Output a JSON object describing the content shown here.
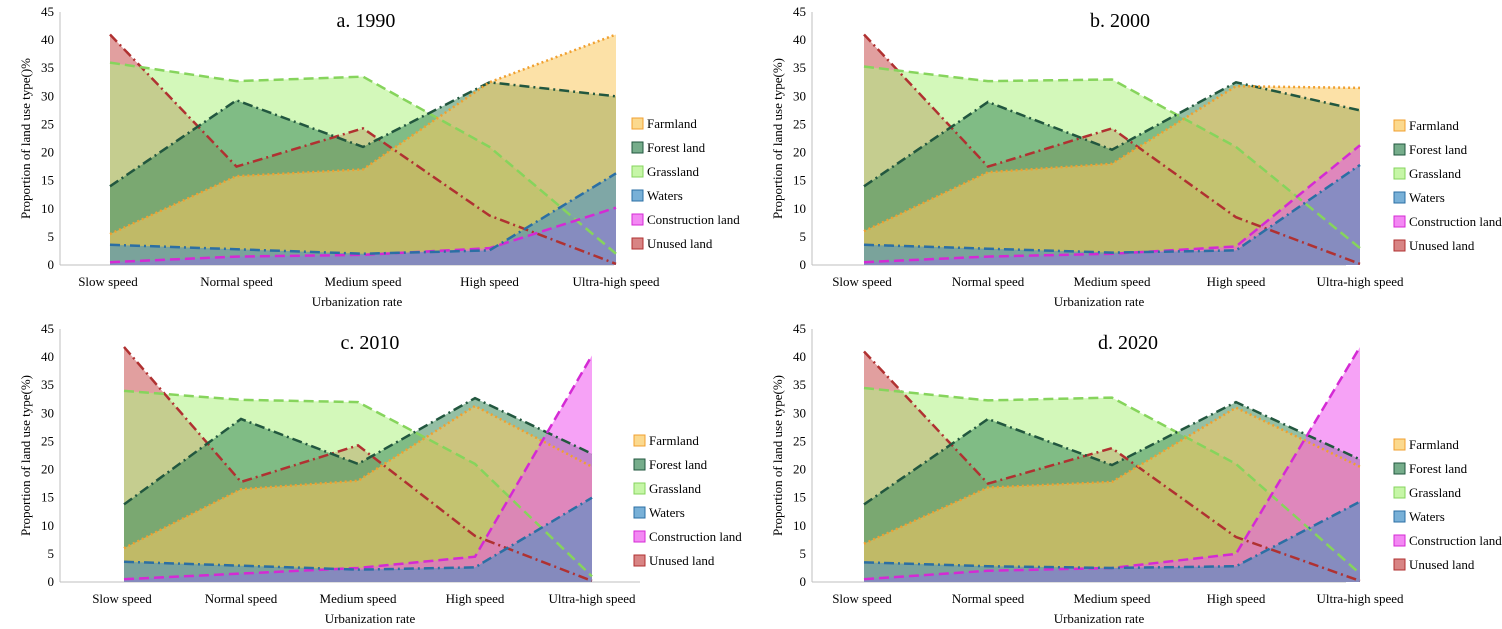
{
  "chart_data": [
    {
      "type": "area",
      "title": "a. 1990",
      "categories": [
        "Slow speed",
        "Normal speed",
        "Medium speed",
        "High speed",
        "Ultra-high speed"
      ],
      "xlabel": "Urbanization rate",
      "ylabel": "Proportion of land use type()%",
      "ylim": [
        0,
        45
      ],
      "yticks": [
        "0",
        "5",
        "10",
        "15",
        "20",
        "25",
        "30",
        "35",
        "40",
        "45"
      ],
      "legend_position": "right",
      "series": [
        {
          "name": "Farmland",
          "values": [
            5.5,
            15.8,
            17.0,
            32.5,
            41.0
          ]
        },
        {
          "name": "Forest land",
          "values": [
            14.0,
            29.3,
            21.0,
            32.5,
            30.0
          ]
        },
        {
          "name": "Grassland",
          "values": [
            36.0,
            32.7,
            33.5,
            21.0,
            2.0
          ]
        },
        {
          "name": "Waters",
          "values": [
            3.6,
            2.8,
            2.0,
            2.6,
            16.3
          ]
        },
        {
          "name": "Construction land",
          "values": [
            0.5,
            1.5,
            1.8,
            3.0,
            10.2
          ]
        },
        {
          "name": "Unused land",
          "values": [
            41.0,
            17.5,
            24.3,
            8.8,
            0.2
          ]
        }
      ]
    },
    {
      "type": "area",
      "title": "b. 2000",
      "categories": [
        "Slow speed",
        "Normal speed",
        "Medium speed",
        "High speed",
        "Ultra-high speed"
      ],
      "xlabel": "Urbanization rate",
      "ylabel": "Proportion of land use type(%)",
      "ylim": [
        0,
        45
      ],
      "yticks": [
        "0",
        "5",
        "10",
        "15",
        "20",
        "25",
        "30",
        "35",
        "40",
        "45"
      ],
      "legend_position": "right",
      "series": [
        {
          "name": "Farmland",
          "values": [
            6.0,
            16.5,
            18.0,
            31.8,
            31.5
          ]
        },
        {
          "name": "Forest land",
          "values": [
            14.0,
            29.0,
            20.5,
            32.5,
            27.5
          ]
        },
        {
          "name": "Grassland",
          "values": [
            35.3,
            32.7,
            33.0,
            21.0,
            3.0
          ]
        },
        {
          "name": "Waters",
          "values": [
            3.6,
            2.9,
            2.2,
            2.6,
            17.8
          ]
        },
        {
          "name": "Construction land",
          "values": [
            0.5,
            1.5,
            2.0,
            3.3,
            21.3
          ]
        },
        {
          "name": "Unused land",
          "values": [
            41.0,
            17.5,
            24.3,
            8.5,
            0.2
          ]
        }
      ]
    },
    {
      "type": "area",
      "title": "c. 2010",
      "categories": [
        "Slow speed",
        "Normal speed",
        "Medium speed",
        "High speed",
        "Ultra-high speed"
      ],
      "xlabel": "Urbanization rate",
      "ylabel": "Proportion of land use type(%)",
      "ylim": [
        0,
        45
      ],
      "yticks": [
        "0",
        "5",
        "10",
        "15",
        "20",
        "25",
        "30",
        "35",
        "40",
        "45"
      ],
      "legend_position": "right",
      "series": [
        {
          "name": "Farmland",
          "values": [
            6.0,
            16.5,
            18.0,
            31.3,
            20.5
          ]
        },
        {
          "name": "Forest land",
          "values": [
            13.8,
            29.0,
            21.0,
            32.7,
            22.8
          ]
        },
        {
          "name": "Grassland",
          "values": [
            34.0,
            32.4,
            32.0,
            21.0,
            1.0
          ]
        },
        {
          "name": "Waters",
          "values": [
            3.6,
            2.9,
            2.2,
            2.6,
            15.0
          ]
        },
        {
          "name": "Construction land",
          "values": [
            0.5,
            1.5,
            2.5,
            4.5,
            40.3
          ]
        },
        {
          "name": "Unused land",
          "values": [
            41.8,
            17.8,
            24.3,
            8.2,
            0.2
          ]
        }
      ]
    },
    {
      "type": "area",
      "title": "d. 2020",
      "categories": [
        "Slow speed",
        "Normal speed",
        "Medium speed",
        "High speed",
        "Ultra-high speed"
      ],
      "xlabel": "Urbanization rate",
      "ylabel": "Proportion of land use type(%)",
      "ylim": [
        0,
        45
      ],
      "yticks": [
        "0",
        "5",
        "10",
        "15",
        "20",
        "25",
        "30",
        "35",
        "40",
        "45"
      ],
      "legend_position": "right",
      "series": [
        {
          "name": "Farmland",
          "values": [
            6.8,
            16.8,
            17.8,
            31.0,
            20.5
          ]
        },
        {
          "name": "Forest land",
          "values": [
            13.8,
            29.0,
            20.8,
            32.0,
            21.8
          ]
        },
        {
          "name": "Grassland",
          "values": [
            34.5,
            32.3,
            32.8,
            21.0,
            1.5
          ]
        },
        {
          "name": "Waters",
          "values": [
            3.5,
            2.8,
            2.5,
            2.8,
            14.3
          ]
        },
        {
          "name": "Construction land",
          "values": [
            0.5,
            2.0,
            2.5,
            5.0,
            41.8
          ]
        },
        {
          "name": "Unused land",
          "values": [
            41.0,
            17.5,
            23.8,
            8.0,
            0.2
          ]
        }
      ]
    }
  ],
  "series_colors": {
    "Farmland": {
      "fill": "#f9c95e",
      "line": "#f0a030"
    },
    "Forest land": {
      "fill": "#3c8a5a",
      "line": "#22573f"
    },
    "Grassland": {
      "fill": "#aef282",
      "line": "#86d45c"
    },
    "Waters": {
      "fill": "#3f8fc6",
      "line": "#2b6fa4"
    },
    "Construction land": {
      "fill": "#ee55ee",
      "line": "#d42ad4"
    },
    "Unused land": {
      "fill": "#c85050",
      "line": "#b03131"
    }
  }
}
